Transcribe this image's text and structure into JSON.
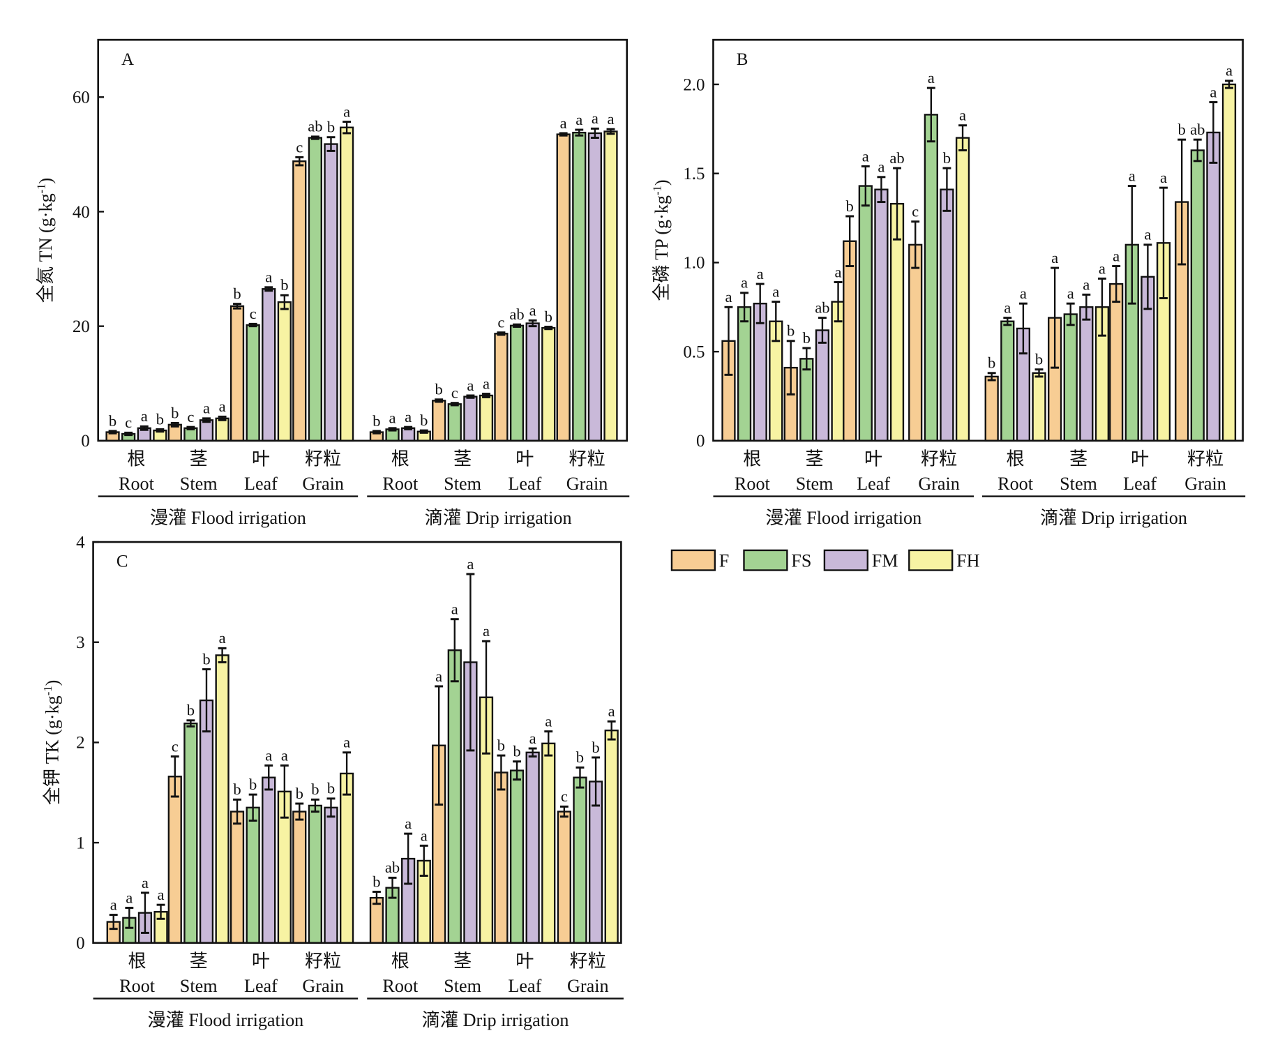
{
  "legend": [
    {
      "name": "F",
      "color": "#f7cd94"
    },
    {
      "name": "FS",
      "color": "#a3d393"
    },
    {
      "name": "FM",
      "color": "#c9b9d9"
    },
    {
      "name": "FH",
      "color": "#f7f3a3"
    }
  ],
  "groups_cn": [
    "根",
    "茎",
    "叶",
    "籽粒"
  ],
  "groups_en": [
    "Root",
    "Stem",
    "Leaf",
    "Grain"
  ],
  "irrigation": [
    "漫灌 Flood irrigation",
    "滴灌 Drip irrigation"
  ],
  "chart_data": [
    {
      "type": "bar",
      "panel": "A",
      "ylabel": "全氮 TN (g·kg-1)",
      "ylabel_main": "全氮 TN (g·kg",
      "ylabel_sup": "-1",
      "ylim": [
        0,
        70
      ],
      "yticks": [
        0,
        20,
        40,
        60
      ],
      "ytick_labels": [
        "0",
        "20",
        "40",
        "60"
      ],
      "series": [
        {
          "irrigation": "Flood",
          "values": [
            [
              1.5,
              1.2,
              2.2,
              1.8
            ],
            [
              2.8,
              2.2,
              3.6,
              3.9
            ],
            [
              23.5,
              20.2,
              26.5,
              24.2
            ],
            [
              48.8,
              52.9,
              51.8,
              54.7
            ]
          ],
          "errors": [
            [
              0.2,
              0.2,
              0.3,
              0.2
            ],
            [
              0.3,
              0.2,
              0.3,
              0.3
            ],
            [
              0.4,
              0.2,
              0.3,
              1.2
            ],
            [
              0.7,
              0.2,
              1.2,
              1.0
            ]
          ],
          "letters": [
            [
              "b",
              "c",
              "a",
              "b"
            ],
            [
              "b",
              "c",
              "a",
              "a"
            ],
            [
              "b",
              "c",
              "a",
              "b"
            ],
            [
              "c",
              "ab",
              "b",
              "a"
            ]
          ]
        },
        {
          "irrigation": "Drip",
          "values": [
            [
              1.5,
              2.0,
              2.2,
              1.6
            ],
            [
              7.0,
              6.4,
              7.7,
              7.9
            ],
            [
              18.7,
              20.1,
              20.5,
              19.7
            ],
            [
              53.5,
              53.8,
              53.7,
              54.0
            ]
          ],
          "errors": [
            [
              0.2,
              0.2,
              0.2,
              0.2
            ],
            [
              0.2,
              0.2,
              0.2,
              0.3
            ],
            [
              0.2,
              0.2,
              0.5,
              0.2
            ],
            [
              0.2,
              0.5,
              0.8,
              0.4
            ]
          ],
          "letters": [
            [
              "b",
              "a",
              "a",
              "b"
            ],
            [
              "b",
              "c",
              "a",
              "a"
            ],
            [
              "c",
              "ab",
              "a",
              "b"
            ],
            [
              "a",
              "a",
              "a",
              "a"
            ]
          ]
        }
      ]
    },
    {
      "type": "bar",
      "panel": "B",
      "ylabel": "全磷 TP (g·kg-1)",
      "ylabel_main": "全磷 TP (g·kg",
      "ylabel_sup": "-1",
      "ylim": [
        0,
        2.25
      ],
      "yticks": [
        0,
        0.5,
        1.0,
        1.5,
        2.0
      ],
      "ytick_labels": [
        "0",
        "0.5",
        "1.0",
        "1.5",
        "2.0"
      ],
      "series": [
        {
          "irrigation": "Flood",
          "values": [
            [
              0.56,
              0.75,
              0.77,
              0.67
            ],
            [
              0.41,
              0.46,
              0.62,
              0.78
            ],
            [
              1.12,
              1.43,
              1.41,
              1.33
            ],
            [
              1.1,
              1.83,
              1.41,
              1.7
            ]
          ],
          "errors": [
            [
              0.19,
              0.08,
              0.11,
              0.11
            ],
            [
              0.15,
              0.06,
              0.07,
              0.11
            ],
            [
              0.14,
              0.11,
              0.07,
              0.2
            ],
            [
              0.13,
              0.15,
              0.12,
              0.07
            ]
          ],
          "letters": [
            [
              "a",
              "a",
              "a",
              "a"
            ],
            [
              "b",
              "b",
              "ab",
              "a"
            ],
            [
              "b",
              "a",
              "a",
              "ab"
            ],
            [
              "c",
              "a",
              "b",
              "a"
            ]
          ]
        },
        {
          "irrigation": "Drip",
          "values": [
            [
              0.36,
              0.67,
              0.63,
              0.38
            ],
            [
              0.69,
              0.71,
              0.75,
              0.75
            ],
            [
              0.88,
              1.1,
              0.92,
              1.11
            ],
            [
              1.34,
              1.63,
              1.73,
              2.0
            ]
          ],
          "errors": [
            [
              0.02,
              0.02,
              0.14,
              0.02
            ],
            [
              0.28,
              0.06,
              0.07,
              0.16
            ],
            [
              0.1,
              0.33,
              0.18,
              0.31
            ],
            [
              0.35,
              0.06,
              0.17,
              0.02
            ]
          ],
          "letters": [
            [
              "b",
              "a",
              "a",
              "b"
            ],
            [
              "a",
              "a",
              "a",
              "a"
            ],
            [
              "a",
              "a",
              "a",
              "a"
            ],
            [
              "b",
              "ab",
              "a",
              "a"
            ]
          ]
        }
      ]
    },
    {
      "type": "bar",
      "panel": "C",
      "ylabel": "全钾 TK (g·kg-1)",
      "ylabel_main": "全钾 TK (g·kg",
      "ylabel_sup": "-1",
      "ylim": [
        0,
        4
      ],
      "yticks": [
        0,
        1,
        2,
        3,
        4
      ],
      "ytick_labels": [
        "0",
        "1",
        "2",
        "3",
        "4"
      ],
      "series": [
        {
          "irrigation": "Flood",
          "values": [
            [
              0.21,
              0.25,
              0.3,
              0.31
            ],
            [
              1.66,
              2.19,
              2.42,
              2.87
            ],
            [
              1.31,
              1.35,
              1.65,
              1.51
            ],
            [
              1.31,
              1.37,
              1.35,
              1.69
            ]
          ],
          "errors": [
            [
              0.07,
              0.1,
              0.2,
              0.07
            ],
            [
              0.2,
              0.03,
              0.31,
              0.07
            ],
            [
              0.12,
              0.13,
              0.12,
              0.26
            ],
            [
              0.08,
              0.06,
              0.09,
              0.21
            ]
          ],
          "letters": [
            [
              "a",
              "a",
              "a",
              "a"
            ],
            [
              "c",
              "b",
              "b",
              "a"
            ],
            [
              "b",
              "b",
              "a",
              "a"
            ],
            [
              "b",
              "b",
              "b",
              "a"
            ]
          ]
        },
        {
          "irrigation": "Drip",
          "values": [
            [
              0.45,
              0.55,
              0.84,
              0.82
            ],
            [
              1.97,
              2.92,
              2.8,
              2.45
            ],
            [
              1.7,
              1.72,
              1.9,
              1.99
            ],
            [
              1.31,
              1.65,
              1.61,
              2.12
            ]
          ],
          "errors": [
            [
              0.06,
              0.1,
              0.25,
              0.15
            ],
            [
              0.59,
              0.31,
              0.88,
              0.56
            ],
            [
              0.17,
              0.09,
              0.04,
              0.12
            ],
            [
              0.05,
              0.1,
              0.24,
              0.09
            ]
          ],
          "letters": [
            [
              "b",
              "ab",
              "a",
              "a"
            ],
            [
              "a",
              "a",
              "a",
              "a"
            ],
            [
              "b",
              "b",
              "a",
              "a"
            ],
            [
              "c",
              "b",
              "b",
              "a"
            ]
          ]
        }
      ]
    }
  ]
}
